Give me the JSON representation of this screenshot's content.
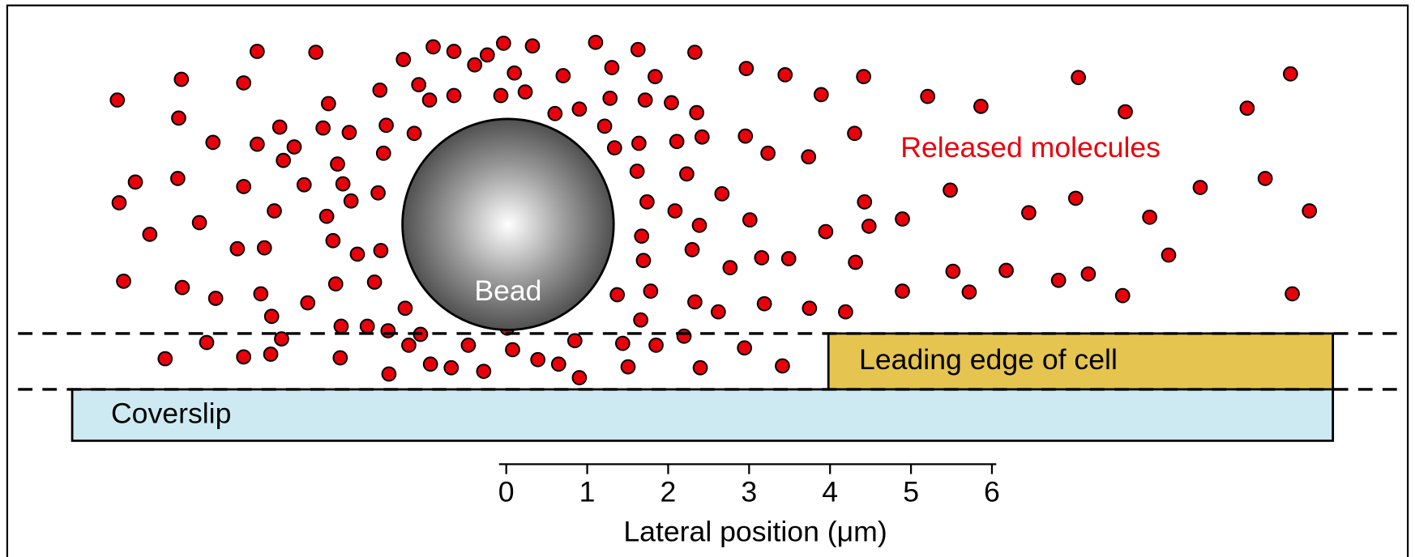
{
  "labels": {
    "released": "Released molecules",
    "bead": "Bead",
    "leading_edge": "Leading edge of cell",
    "coverslip": "Coverslip"
  },
  "axis": {
    "ticks": [
      0,
      1,
      2,
      3,
      4,
      5,
      6
    ],
    "label": "Lateral position (μm)"
  }
}
